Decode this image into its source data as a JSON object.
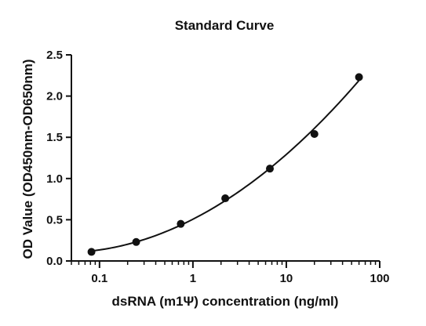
{
  "chart_data": {
    "type": "scatter",
    "title": "Standard Curve",
    "xlabel": "dsRNA (m1Ψ) concentration (ng/ml)",
    "ylabel": "OD Value (OD450nm-OD650nm)",
    "x_scale": "log",
    "xlim": [
      0.05,
      100
    ],
    "ylim": [
      0,
      2.5
    ],
    "x_ticks": [
      0.1,
      1,
      10,
      100
    ],
    "x_tick_labels": [
      "0.1",
      "1",
      "10",
      "100"
    ],
    "y_ticks": [
      0.0,
      0.5,
      1.0,
      1.5,
      2.0,
      2.5
    ],
    "y_tick_labels": [
      "0.0",
      "0.5",
      "1.0",
      "1.5",
      "2.0",
      "2.5"
    ],
    "grid": false,
    "legend": "none",
    "series": [
      {
        "x": [
          0.082,
          0.247,
          0.741,
          2.22,
          6.67,
          20,
          60
        ],
        "y": [
          0.11,
          0.23,
          0.45,
          0.76,
          1.12,
          1.54,
          2.23
        ],
        "marker": "circle",
        "fit_line": true
      }
    ],
    "colors": {
      "points": "#111111",
      "curve": "#111111",
      "axes": "#111111"
    }
  }
}
